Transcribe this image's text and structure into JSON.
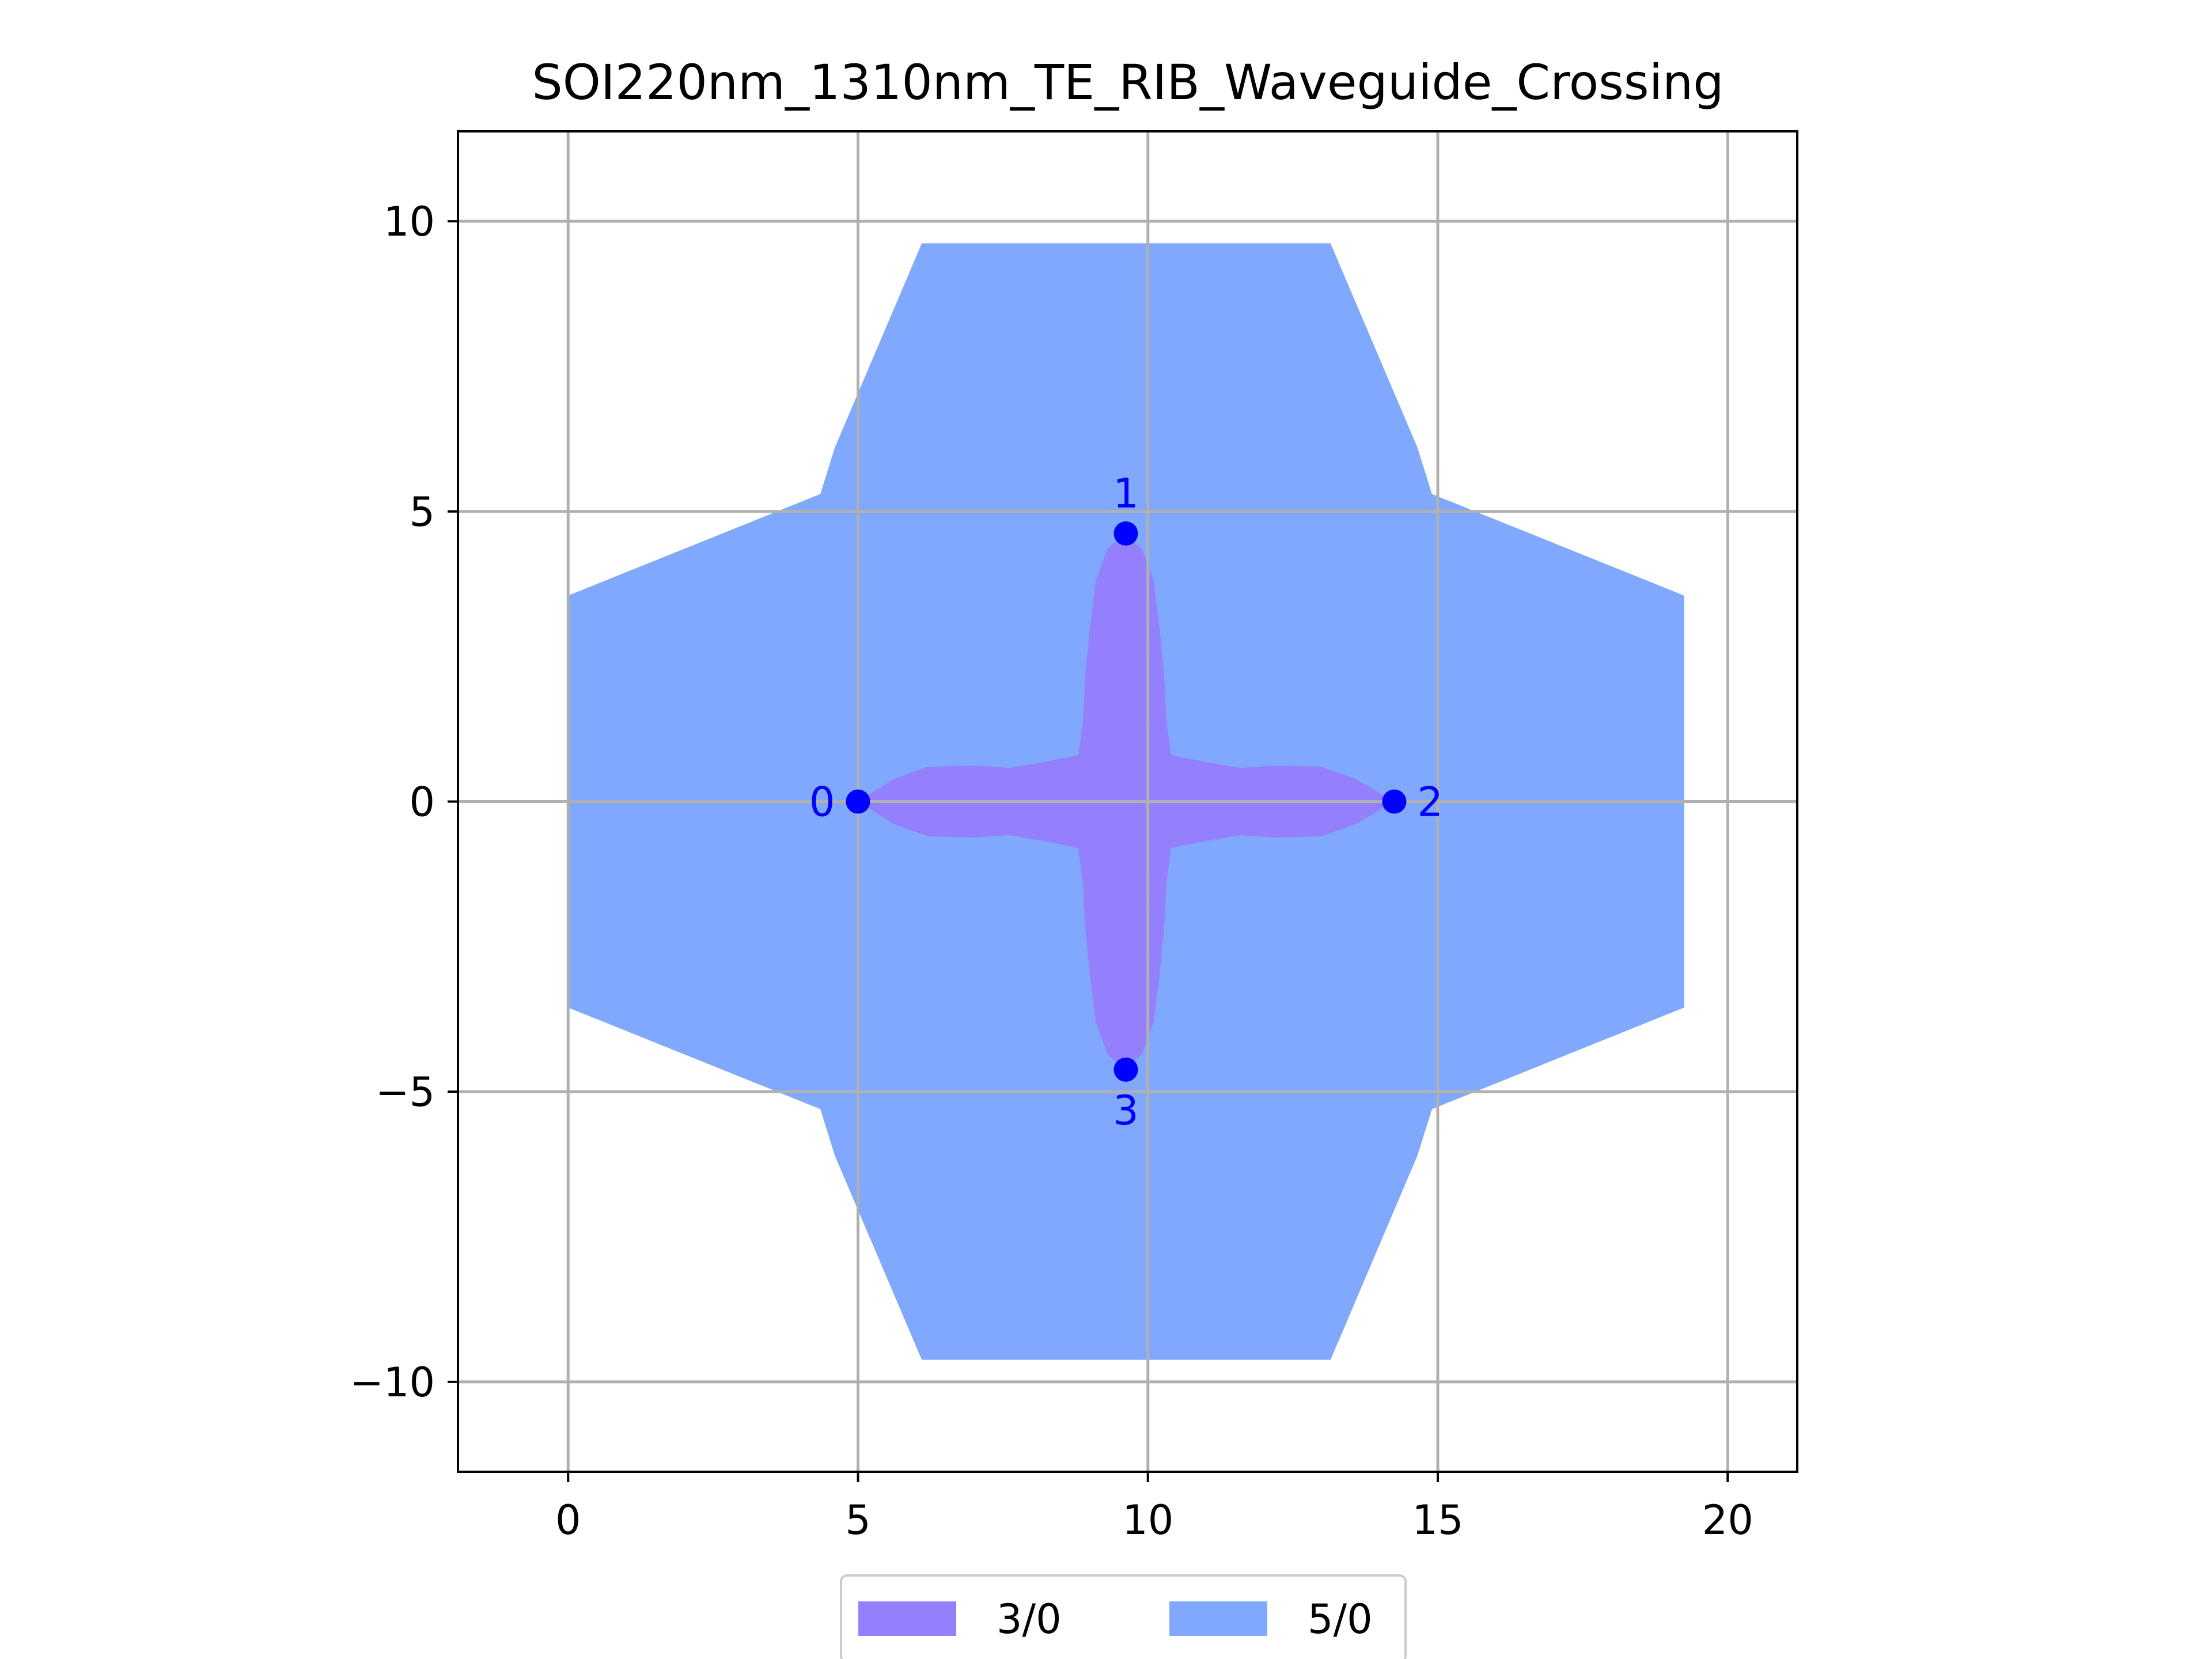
{
  "chart_data": {
    "type": "scatter",
    "title": "SOI220nm_1310nm_TE_RIB_Waveguide_Crossing",
    "xlabel": "",
    "ylabel": "",
    "xlim": [
      -1.9,
      21.2
    ],
    "ylim": [
      -11.55,
      11.55
    ],
    "x_ticks": [
      0,
      5,
      10,
      15,
      20
    ],
    "x_tick_labels": [
      "0",
      "5",
      "10",
      "15",
      "20"
    ],
    "y_ticks": [
      10,
      5,
      0,
      -5,
      -10
    ],
    "y_tick_labels": [
      "10",
      "5",
      "0",
      "−5",
      "−10"
    ],
    "grid": true,
    "legend_position": "bottom-center",
    "series": [
      {
        "name": "3/0",
        "color": "#9480fd",
        "kind": "polygon",
        "points": [
          [
            5.0,
            0.0
          ],
          [
            5.6,
            0.38
          ],
          [
            6.2,
            0.6
          ],
          [
            7.0,
            0.62
          ],
          [
            7.6,
            0.58
          ],
          [
            8.2,
            0.68
          ],
          [
            8.8,
            0.8
          ],
          [
            8.88,
            1.4
          ],
          [
            8.92,
            2.2
          ],
          [
            9.0,
            3.0
          ],
          [
            9.1,
            3.8
          ],
          [
            9.3,
            4.35
          ],
          [
            9.6,
            4.62
          ],
          [
            9.9,
            4.35
          ],
          [
            10.1,
            3.8
          ],
          [
            10.2,
            3.0
          ],
          [
            10.28,
            2.2
          ],
          [
            10.32,
            1.4
          ],
          [
            10.4,
            0.8
          ],
          [
            11.0,
            0.68
          ],
          [
            11.6,
            0.58
          ],
          [
            12.2,
            0.62
          ],
          [
            13.0,
            0.6
          ],
          [
            13.6,
            0.38
          ],
          [
            14.25,
            0.0
          ],
          [
            13.6,
            -0.38
          ],
          [
            13.0,
            -0.6
          ],
          [
            12.2,
            -0.62
          ],
          [
            11.6,
            -0.58
          ],
          [
            11.0,
            -0.68
          ],
          [
            10.4,
            -0.8
          ],
          [
            10.32,
            -1.4
          ],
          [
            10.28,
            -2.2
          ],
          [
            10.2,
            -3.0
          ],
          [
            10.1,
            -3.8
          ],
          [
            9.9,
            -4.35
          ],
          [
            9.6,
            -4.62
          ],
          [
            9.3,
            -4.35
          ],
          [
            9.1,
            -3.8
          ],
          [
            9.0,
            -3.0
          ],
          [
            8.92,
            -2.2
          ],
          [
            8.88,
            -1.4
          ],
          [
            8.8,
            -0.8
          ],
          [
            8.2,
            -0.68
          ],
          [
            7.6,
            -0.58
          ],
          [
            7.0,
            -0.62
          ],
          [
            6.2,
            -0.6
          ],
          [
            5.6,
            -0.38
          ]
        ]
      },
      {
        "name": "5/0",
        "color": "#80a9fd",
        "kind": "polygon",
        "points": [
          [
            0.0,
            3.55
          ],
          [
            4.35,
            5.3
          ],
          [
            4.6,
            6.1
          ],
          [
            6.1,
            9.62
          ],
          [
            13.15,
            9.62
          ],
          [
            14.65,
            6.1
          ],
          [
            14.9,
            5.3
          ],
          [
            19.25,
            3.55
          ],
          [
            19.25,
            -3.55
          ],
          [
            14.9,
            -5.3
          ],
          [
            14.65,
            -6.1
          ],
          [
            13.15,
            -9.62
          ],
          [
            6.1,
            -9.62
          ],
          [
            4.6,
            -6.1
          ],
          [
            4.35,
            -5.3
          ],
          [
            0.0,
            -3.55
          ]
        ]
      }
    ],
    "ports": [
      {
        "label": "0",
        "x": 5.0,
        "y": 0.0,
        "label_side": "left"
      },
      {
        "label": "1",
        "x": 9.62,
        "y": 4.62,
        "label_side": "top"
      },
      {
        "label": "2",
        "x": 14.25,
        "y": 0.0,
        "label_side": "right"
      },
      {
        "label": "3",
        "x": 9.62,
        "y": -4.62,
        "label_side": "bottom"
      }
    ],
    "port_color": "#0000ff",
    "grid_color": "#b0b0b0",
    "legend": [
      {
        "label": "3/0",
        "color": "#9480fd"
      },
      {
        "label": "5/0",
        "color": "#80a9fd"
      }
    ]
  }
}
